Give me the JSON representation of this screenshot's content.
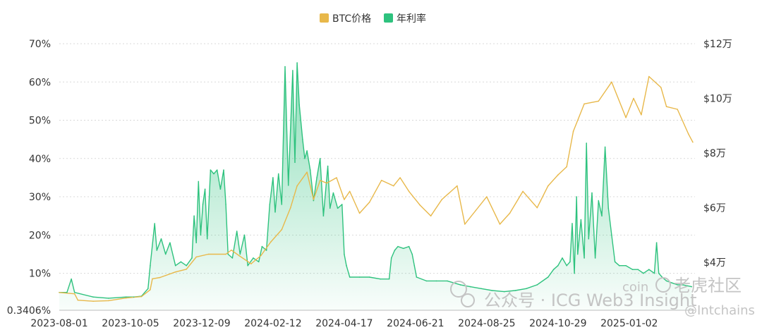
{
  "chart_data": {
    "type": "line",
    "title": "",
    "legend": {
      "position": "top-center",
      "items": [
        {
          "name": "BTC价格",
          "color": "#e8b84a"
        },
        {
          "name": "年利率",
          "color": "#2ec27e"
        }
      ]
    },
    "x_ticks": [
      "2023-08-01",
      "2023-10-05",
      "2023-12-09",
      "2024-02-12",
      "2024-04-17",
      "2024-06-21",
      "2024-08-25",
      "2024-10-29",
      "2025-01-02"
    ],
    "y_left": {
      "ticks": [
        "0.3406%",
        "10%",
        "20%",
        "30%",
        "40%",
        "50%",
        "60%",
        "70%"
      ],
      "range": [
        0.3406,
        70
      ]
    },
    "y_right": {
      "ticks": [
        "$4万",
        "$6万",
        "$8万",
        "$10万",
        "$12万"
      ],
      "range": [
        2.25,
        12
      ]
    },
    "grid": "horizontal",
    "series": [
      {
        "name": "年利率",
        "axis": "left",
        "color": "#2ec27e",
        "points": [
          [
            "2023-08-01",
            5
          ],
          [
            "2023-08-08",
            5
          ],
          [
            "2023-08-12",
            8.5
          ],
          [
            "2023-08-15",
            5
          ],
          [
            "2023-09-01",
            3.8
          ],
          [
            "2023-09-15",
            3.5
          ],
          [
            "2023-10-01",
            3.8
          ],
          [
            "2023-10-08",
            3.8
          ],
          [
            "2023-10-15",
            4
          ],
          [
            "2023-10-21",
            6
          ],
          [
            "2023-10-23",
            12
          ],
          [
            "2023-10-27",
            23
          ],
          [
            "2023-10-29",
            16
          ],
          [
            "2023-11-02",
            19
          ],
          [
            "2023-11-06",
            15
          ],
          [
            "2023-11-10",
            18
          ],
          [
            "2023-11-15",
            12
          ],
          [
            "2023-11-20",
            13
          ],
          [
            "2023-11-25",
            12
          ],
          [
            "2023-11-30",
            14
          ],
          [
            "2023-12-02",
            25
          ],
          [
            "2023-12-04",
            18
          ],
          [
            "2023-12-06",
            34
          ],
          [
            "2023-12-08",
            20
          ],
          [
            "2023-12-10",
            28
          ],
          [
            "2023-12-12",
            32
          ],
          [
            "2023-12-14",
            19
          ],
          [
            "2023-12-17",
            37
          ],
          [
            "2023-12-20",
            36
          ],
          [
            "2023-12-23",
            37
          ],
          [
            "2023-12-26",
            32
          ],
          [
            "2023-12-29",
            37
          ],
          [
            "2023-12-31",
            28
          ],
          [
            "2024-01-02",
            15
          ],
          [
            "2024-01-06",
            14
          ],
          [
            "2024-01-10",
            21
          ],
          [
            "2024-01-13",
            15
          ],
          [
            "2024-01-17",
            20
          ],
          [
            "2024-01-20",
            12
          ],
          [
            "2024-01-25",
            14
          ],
          [
            "2024-01-30",
            13
          ],
          [
            "2024-02-02",
            17
          ],
          [
            "2024-02-06",
            16
          ],
          [
            "2024-02-09",
            28
          ],
          [
            "2024-02-12",
            35
          ],
          [
            "2024-02-14",
            26
          ],
          [
            "2024-02-17",
            36
          ],
          [
            "2024-02-20",
            28
          ],
          [
            "2024-02-23",
            64
          ],
          [
            "2024-02-26",
            33
          ],
          [
            "2024-03-01",
            63
          ],
          [
            "2024-03-03",
            39
          ],
          [
            "2024-03-05",
            65
          ],
          [
            "2024-03-07",
            54
          ],
          [
            "2024-03-10",
            45
          ],
          [
            "2024-03-12",
            40
          ],
          [
            "2024-03-14",
            42
          ],
          [
            "2024-03-17",
            37
          ],
          [
            "2024-03-20",
            29
          ],
          [
            "2024-03-23",
            35
          ],
          [
            "2024-03-26",
            40
          ],
          [
            "2024-03-29",
            25
          ],
          [
            "2024-04-02",
            38
          ],
          [
            "2024-04-04",
            27
          ],
          [
            "2024-04-07",
            31
          ],
          [
            "2024-04-11",
            27
          ],
          [
            "2024-04-15",
            28
          ],
          [
            "2024-04-17",
            15
          ],
          [
            "2024-04-19",
            12
          ],
          [
            "2024-04-22",
            9
          ],
          [
            "2024-05-01",
            9
          ],
          [
            "2024-05-10",
            9
          ],
          [
            "2024-05-20",
            8.5
          ],
          [
            "2024-05-28",
            8.5
          ],
          [
            "2024-05-30",
            14
          ],
          [
            "2024-06-02",
            16
          ],
          [
            "2024-06-05",
            17
          ],
          [
            "2024-06-10",
            16.5
          ],
          [
            "2024-06-15",
            17
          ],
          [
            "2024-06-18",
            15
          ],
          [
            "2024-06-20",
            12
          ],
          [
            "2024-06-22",
            9
          ],
          [
            "2024-07-01",
            8
          ],
          [
            "2024-07-10",
            8
          ],
          [
            "2024-07-20",
            8
          ],
          [
            "2024-08-01",
            7
          ],
          [
            "2024-08-10",
            6.5
          ],
          [
            "2024-08-20",
            6
          ],
          [
            "2024-08-30",
            5.5
          ],
          [
            "2024-09-10",
            5.2
          ],
          [
            "2024-09-20",
            5.5
          ],
          [
            "2024-09-30",
            6
          ],
          [
            "2024-10-10",
            7
          ],
          [
            "2024-10-20",
            9
          ],
          [
            "2024-10-25",
            11
          ],
          [
            "2024-10-29",
            12
          ],
          [
            "2024-11-02",
            14
          ],
          [
            "2024-11-06",
            12
          ],
          [
            "2024-11-09",
            13
          ],
          [
            "2024-11-11",
            23
          ],
          [
            "2024-11-13",
            10
          ],
          [
            "2024-11-15",
            30
          ],
          [
            "2024-11-16",
            15
          ],
          [
            "2024-11-19",
            24
          ],
          [
            "2024-11-22",
            14
          ],
          [
            "2024-11-24",
            44
          ],
          [
            "2024-11-26",
            19
          ],
          [
            "2024-11-29",
            31
          ],
          [
            "2024-12-02",
            14
          ],
          [
            "2024-12-05",
            29
          ],
          [
            "2024-12-08",
            25
          ],
          [
            "2024-12-11",
            43
          ],
          [
            "2024-12-14",
            27
          ],
          [
            "2024-12-17",
            20
          ],
          [
            "2024-12-20",
            13
          ],
          [
            "2024-12-24",
            12
          ],
          [
            "2024-12-30",
            12
          ],
          [
            "2025-01-05",
            11
          ],
          [
            "2025-01-10",
            11
          ],
          [
            "2025-01-15",
            10
          ],
          [
            "2025-01-20",
            11
          ],
          [
            "2025-01-25",
            10
          ],
          [
            "2025-01-27",
            18
          ],
          [
            "2025-01-29",
            10
          ],
          [
            "2025-02-01",
            9
          ],
          [
            "2025-02-05",
            8
          ],
          [
            "2025-02-10",
            7.5
          ],
          [
            "2025-02-15",
            7
          ],
          [
            "2025-02-20",
            7
          ],
          [
            "2025-02-28",
            6.5
          ]
        ]
      },
      {
        "name": "BTC价格",
        "axis": "right",
        "color": "#e8b84a",
        "points": [
          [
            "2023-08-01",
            2.9
          ],
          [
            "2023-08-15",
            2.85
          ],
          [
            "2023-08-18",
            2.62
          ],
          [
            "2023-09-01",
            2.58
          ],
          [
            "2023-09-15",
            2.6
          ],
          [
            "2023-10-01",
            2.7
          ],
          [
            "2023-10-15",
            2.75
          ],
          [
            "2023-10-23",
            3.0
          ],
          [
            "2023-10-25",
            3.4
          ],
          [
            "2023-11-01",
            3.45
          ],
          [
            "2023-11-15",
            3.65
          ],
          [
            "2023-11-25",
            3.75
          ],
          [
            "2023-12-04",
            4.2
          ],
          [
            "2023-12-15",
            4.3
          ],
          [
            "2023-12-31",
            4.3
          ],
          [
            "2024-01-05",
            4.45
          ],
          [
            "2024-01-12",
            4.25
          ],
          [
            "2024-01-23",
            3.95
          ],
          [
            "2024-02-01",
            4.25
          ],
          [
            "2024-02-10",
            4.75
          ],
          [
            "2024-02-20",
            5.2
          ],
          [
            "2024-02-28",
            6.0
          ],
          [
            "2024-03-05",
            6.8
          ],
          [
            "2024-03-14",
            7.3
          ],
          [
            "2024-03-20",
            6.3
          ],
          [
            "2024-03-26",
            7.0
          ],
          [
            "2024-04-01",
            6.9
          ],
          [
            "2024-04-10",
            7.1
          ],
          [
            "2024-04-17",
            6.3
          ],
          [
            "2024-04-22",
            6.6
          ],
          [
            "2024-05-01",
            5.8
          ],
          [
            "2024-05-10",
            6.2
          ],
          [
            "2024-05-21",
            7.0
          ],
          [
            "2024-06-01",
            6.8
          ],
          [
            "2024-06-07",
            7.1
          ],
          [
            "2024-06-15",
            6.6
          ],
          [
            "2024-06-25",
            6.1
          ],
          [
            "2024-07-05",
            5.7
          ],
          [
            "2024-07-15",
            6.3
          ],
          [
            "2024-07-29",
            6.8
          ],
          [
            "2024-08-05",
            5.4
          ],
          [
            "2024-08-15",
            5.9
          ],
          [
            "2024-08-25",
            6.4
          ],
          [
            "2024-09-06",
            5.4
          ],
          [
            "2024-09-15",
            5.8
          ],
          [
            "2024-09-27",
            6.6
          ],
          [
            "2024-10-10",
            6.0
          ],
          [
            "2024-10-20",
            6.8
          ],
          [
            "2024-10-29",
            7.2
          ],
          [
            "2024-11-06",
            7.5
          ],
          [
            "2024-11-12",
            8.8
          ],
          [
            "2024-11-22",
            9.8
          ],
          [
            "2024-12-05",
            9.9
          ],
          [
            "2024-12-17",
            10.6
          ],
          [
            "2024-12-30",
            9.3
          ],
          [
            "2025-01-06",
            10.0
          ],
          [
            "2025-01-13",
            9.4
          ],
          [
            "2025-01-20",
            10.8
          ],
          [
            "2025-01-31",
            10.4
          ],
          [
            "2025-02-05",
            9.7
          ],
          [
            "2025-02-15",
            9.6
          ],
          [
            "2025-02-25",
            8.7
          ],
          [
            "2025-03-01",
            8.4
          ]
        ]
      }
    ]
  },
  "watermarks": {
    "wechat": "公众号 · ICG Web3 Insight",
    "handle": "@Intchains",
    "community": "老虎社区",
    "coin_overlay": "coin"
  }
}
